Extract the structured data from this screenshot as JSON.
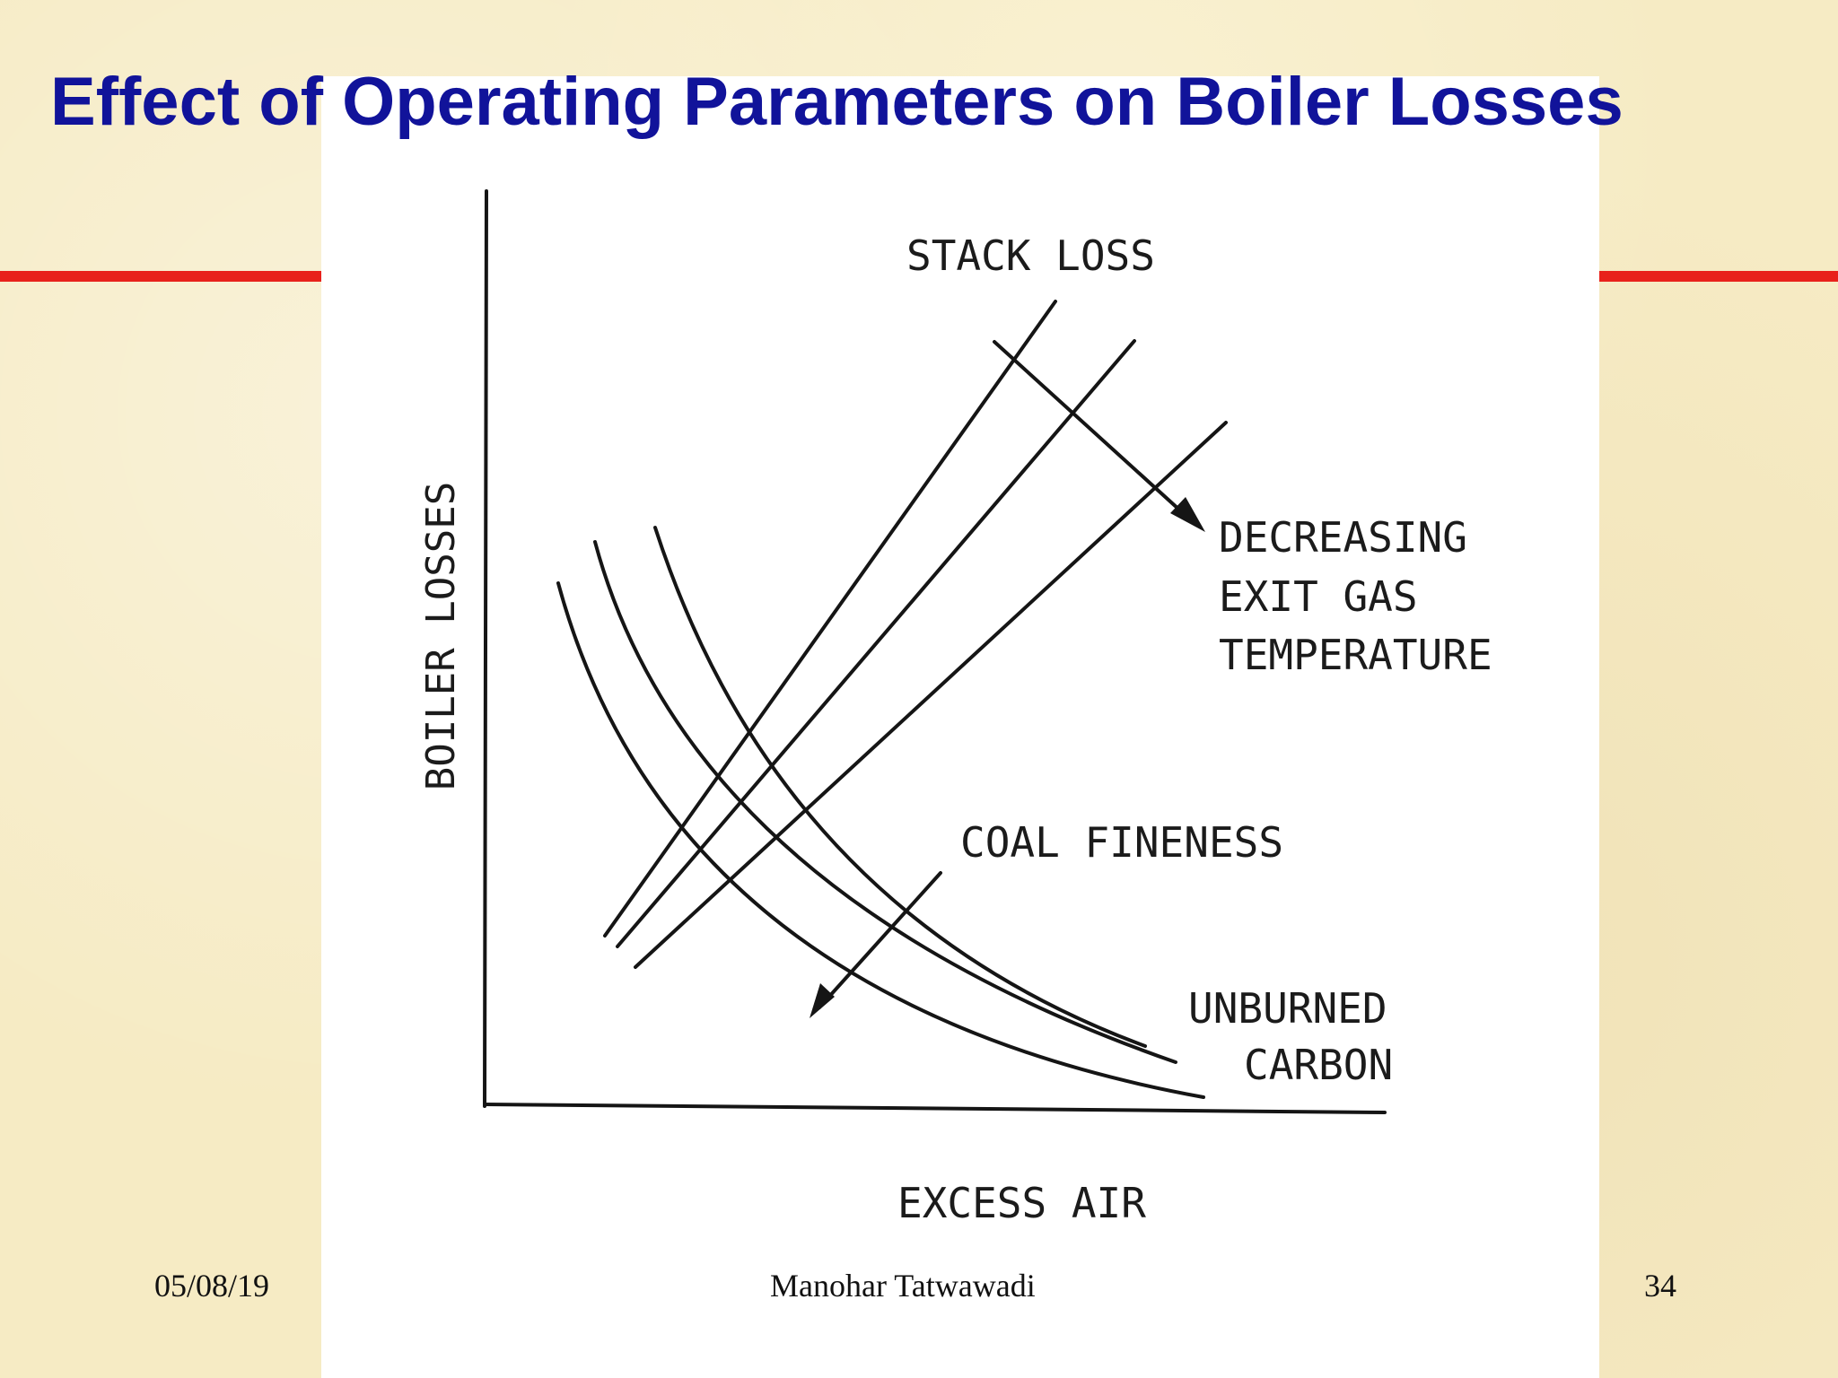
{
  "slide": {
    "title": "Effect of Operating Parameters on Boiler Losses",
    "accent_color": "#e8211b",
    "title_color": "#11139a"
  },
  "figure": {
    "y_axis_label": "BOILER LOSSES",
    "x_axis_label": "EXCESS AIR",
    "stack_loss_label": "STACK LOSS",
    "exit_gas_label": [
      "DECREASING",
      "EXIT GAS",
      "TEMPERATURE"
    ],
    "coal_fineness_label": "COAL FINENESS",
    "unburned_carbon_label": [
      "UNBURNED",
      "CARBON"
    ]
  },
  "footer": {
    "date": "05/08/19",
    "author": "Manohar Tatwawadi",
    "page_number": "34"
  }
}
